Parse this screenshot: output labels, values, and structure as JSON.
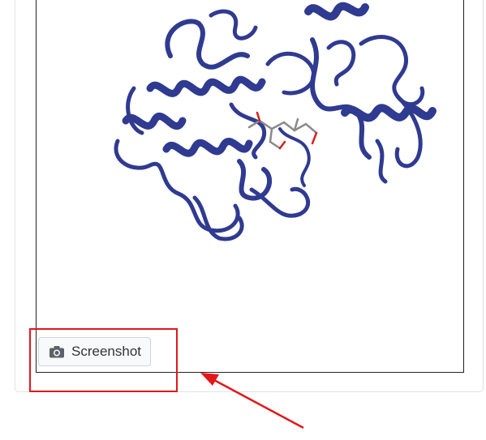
{
  "viewer": {
    "molecule": "protein-ribbon",
    "ribbon_color": "#2f3a91",
    "ligand_color": "#8a8a8a",
    "ligand_accent_color": "#d42020"
  },
  "toolbar": {
    "screenshot_icon": "camera-icon",
    "screenshot_label": "Screenshot"
  },
  "annotation": {
    "highlight_color": "#e3161b"
  }
}
